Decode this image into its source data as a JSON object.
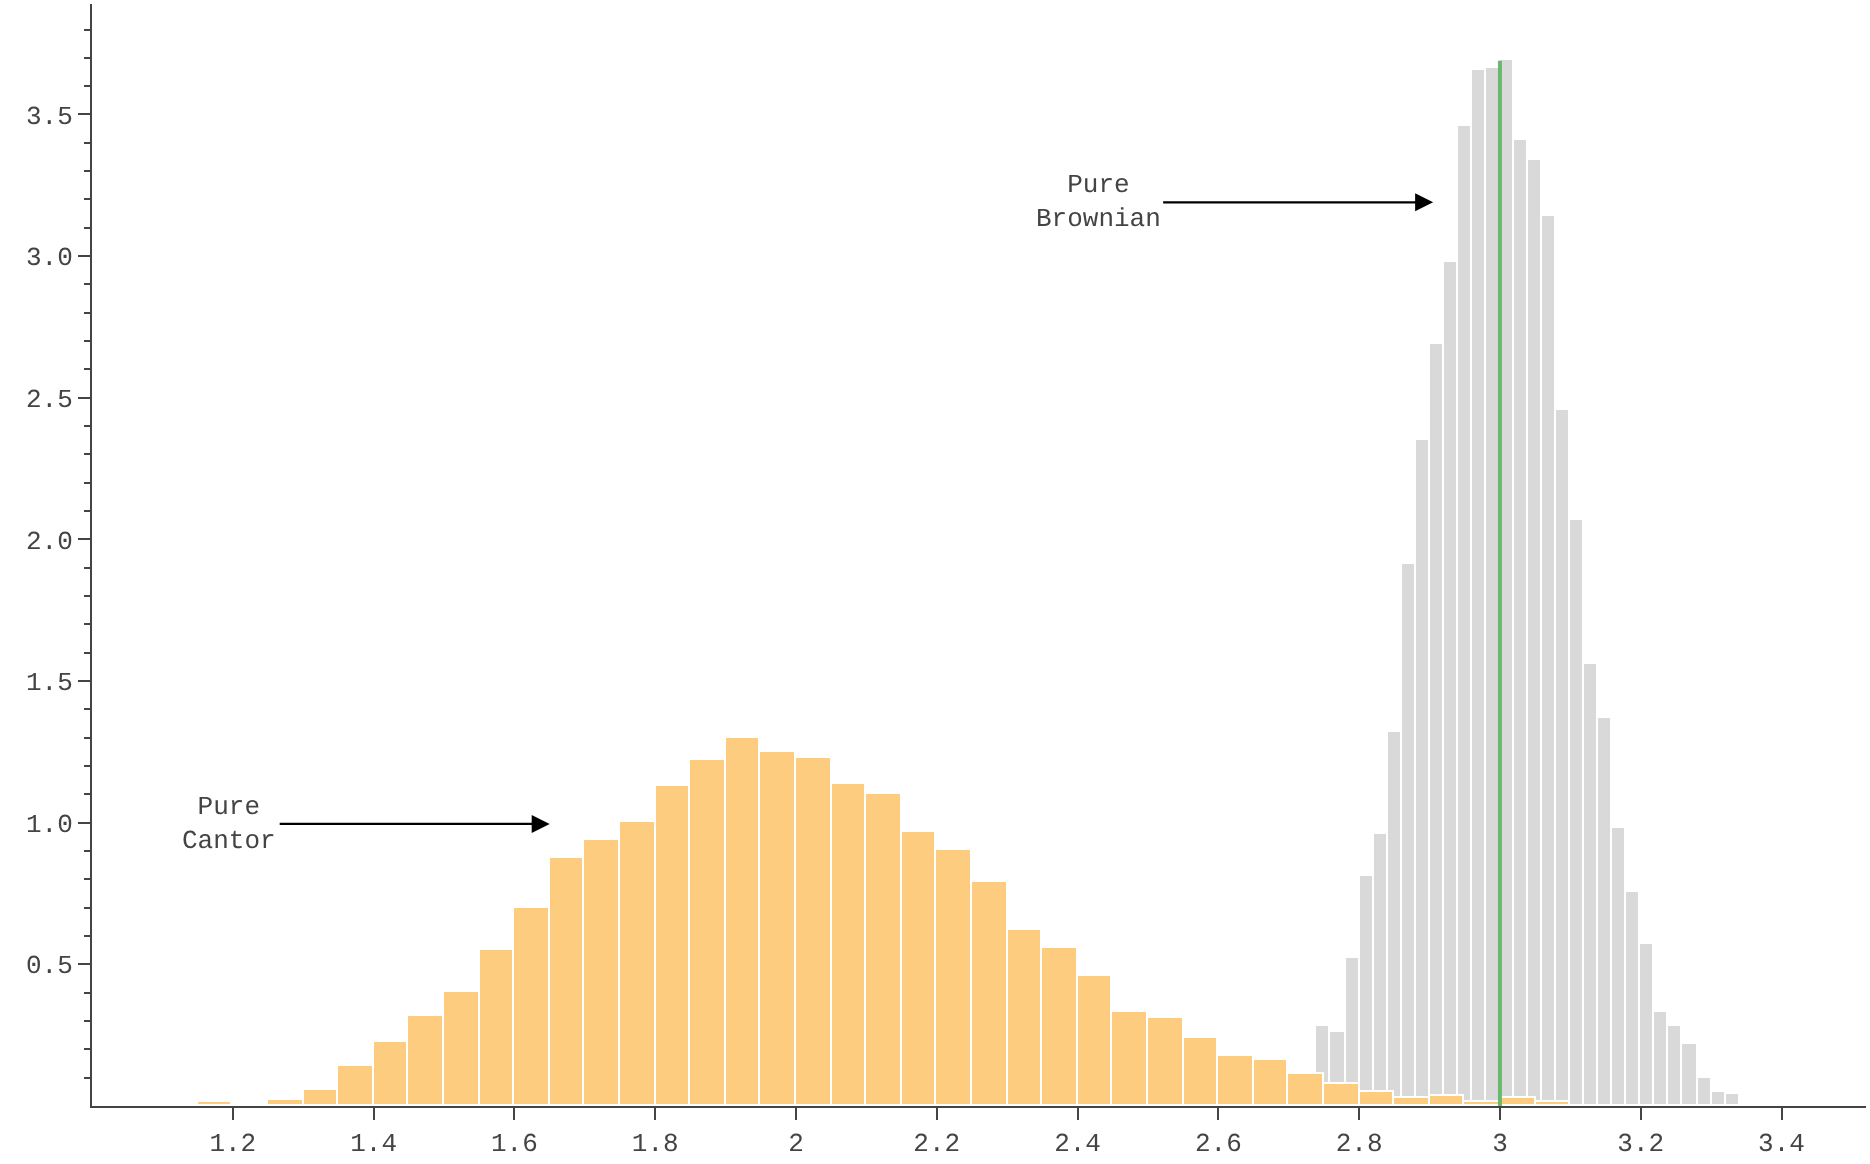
{
  "chart_data": {
    "type": "histogram",
    "bins": [
      1.05,
      1.1,
      1.15,
      1.2,
      1.25,
      1.3,
      1.35,
      1.4,
      1.45,
      1.5,
      1.55,
      1.6,
      1.65,
      1.7,
      1.75,
      1.8,
      1.85,
      1.9,
      1.95,
      2.0,
      2.05,
      2.1,
      2.15,
      2.2,
      2.25,
      2.3,
      2.35,
      2.4,
      2.45,
      2.5,
      2.55,
      2.6,
      2.65,
      2.7,
      2.75,
      2.8,
      2.85,
      2.9,
      2.95,
      3.0,
      3.05,
      3.1,
      3.15
    ],
    "series": [
      {
        "color": "#fdcc7f",
        "values": [
          0.005,
          0.005,
          0.012,
          0.01,
          0.02,
          0.056,
          0.143,
          0.228,
          0.32,
          0.4,
          0.55,
          0.7,
          0.875,
          0.94,
          1.0,
          1.13,
          1.22,
          1.3,
          1.25,
          1.225,
          1.14,
          1.1,
          0.965,
          0.905,
          0.79,
          0.62,
          0.555,
          0.46,
          0.335,
          0.31,
          0.24,
          0.18,
          0.16,
          0.11,
          0.08,
          0.05,
          0.03,
          0.035,
          0.012,
          0.03,
          0.015,
          null
        ]
      },
      {
        "color": "#d9d9d9",
        "bins": [
          2.74,
          2.76,
          2.78,
          2.8,
          2.82,
          2.84,
          2.86,
          2.88,
          2.9,
          2.92,
          2.94,
          2.96,
          2.98,
          3.0,
          3.02,
          3.04,
          3.06,
          3.08,
          3.1,
          3.12,
          3.14,
          3.16,
          3.18,
          3.2,
          3.22,
          3.24,
          3.26,
          3.28,
          3.3,
          3.32,
          3.34,
          3.36,
          3.38
        ],
        "values": [
          0.28,
          0.263,
          0.523,
          0.81,
          0.958,
          1.317,
          1.91,
          2.35,
          2.69,
          2.98,
          3.46,
          3.66,
          3.665,
          3.69,
          3.41,
          3.34,
          3.14,
          2.455,
          2.07,
          1.563,
          1.37,
          0.979,
          0.756,
          0.57,
          0.331,
          0.28,
          0.22,
          0.1,
          0.049,
          0.042,
          0.005,
          0.01
        ]
      }
    ],
    "xlim": [
      1.0,
      3.52
    ],
    "ylim": [
      0,
      3.89
    ],
    "xticks": [
      1.2,
      1.4,
      1.6,
      1.8,
      2,
      2.2,
      2.4,
      2.6,
      2.8,
      3,
      3.2,
      3.4
    ],
    "yticks": [
      {
        "value": 0.5,
        "label": "0.5"
      },
      {
        "value": 1,
        "label": "1.0"
      },
      {
        "value": 1.5,
        "label": "1.5"
      },
      {
        "value": 2,
        "label": "2.0"
      },
      {
        "value": 2.5,
        "label": "2.5"
      },
      {
        "value": 3,
        "label": "3.0"
      },
      {
        "value": 3.5,
        "label": "3.5"
      },
      {
        "value": 0.1,
        "label": null
      },
      {
        "value": 0.2,
        "label": null
      },
      {
        "value": 0.3,
        "label": null
      },
      {
        "value": 0.4,
        "label": null
      },
      {
        "value": 0.6,
        "label": null
      },
      {
        "value": 0.7,
        "label": null
      },
      {
        "value": 0.8,
        "label": null
      },
      {
        "value": 0.9,
        "label": null
      },
      {
        "value": 1.1,
        "label": null
      },
      {
        "value": 1.2,
        "label": null
      },
      {
        "value": 1.3,
        "label": null
      },
      {
        "value": 1.4,
        "label": null
      },
      {
        "value": 1.6,
        "label": null
      },
      {
        "value": 1.7,
        "label": null
      },
      {
        "value": 1.8,
        "label": null
      },
      {
        "value": 1.9,
        "label": null
      },
      {
        "value": 2.1,
        "label": null
      },
      {
        "value": 2.2,
        "label": null
      },
      {
        "value": 2.3,
        "label": null
      },
      {
        "value": 2.4,
        "label": null
      },
      {
        "value": 2.6,
        "label": null
      },
      {
        "value": 2.7,
        "label": null
      },
      {
        "value": 2.8,
        "label": null
      },
      {
        "value": 2.9,
        "label": null
      },
      {
        "value": 3.1,
        "label": null
      },
      {
        "value": 3.2,
        "label": null
      },
      {
        "value": 3.3,
        "label": null
      },
      {
        "value": 3.4,
        "label": null
      },
      {
        "value": 3.6,
        "label": null
      },
      {
        "value": 3.7,
        "label": null
      },
      {
        "value": 3.8,
        "label": null
      }
    ],
    "ref_lines": [
      {
        "axis": "x",
        "value": 3,
        "color": "#6ab96a"
      }
    ],
    "annotations": [
      "Pure\nCantor",
      "Pure\nBrownian"
    ]
  }
}
